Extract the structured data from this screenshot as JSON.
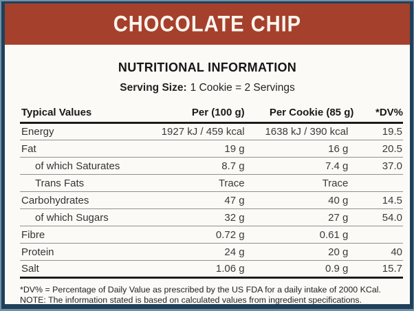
{
  "banner": {
    "title": "CHOCOLATE CHIP"
  },
  "info": {
    "title": "NUTRITIONAL INFORMATION",
    "serving_label": "Serving Size:",
    "serving_value": "1 Cookie = 2 Servings"
  },
  "table": {
    "headers": [
      "Typical Values",
      "Per (100 g)",
      "Per Cookie (85 g)",
      "*DV%"
    ],
    "rows": [
      {
        "label": "Energy",
        "per100": "1927 kJ / 459 kcal",
        "perCookie": "1638 kJ / 390 kcal",
        "dv": "19.5"
      },
      {
        "label": "Fat",
        "per100": "19 g",
        "perCookie": "16 g",
        "dv": "20.5"
      },
      {
        "label": "of which Saturates",
        "per100": "8.7 g",
        "perCookie": "7.4 g",
        "dv": "37.0"
      },
      {
        "label": "Trans Fats",
        "per100": "Trace",
        "perCookie": "Trace",
        "dv": ""
      },
      {
        "label": "Carbohydrates",
        "per100": "47 g",
        "perCookie": "40 g",
        "dv": "14.5"
      },
      {
        "label": "of which Sugars",
        "per100": "32 g",
        "perCookie": "27 g",
        "dv": "54.0"
      },
      {
        "label": "Fibre",
        "per100": "0.72 g",
        "perCookie": "0.61 g",
        "dv": ""
      },
      {
        "label": "Protein",
        "per100": "24 g",
        "perCookie": "20 g",
        "dv": "40"
      },
      {
        "label": "Salt",
        "per100": "1.06 g",
        "perCookie": "0.9 g",
        "dv": "15.7"
      }
    ]
  },
  "footnotes": [
    "*DV% = Percentage of Daily Value as prescribed by the US FDA for a daily intake of 2000 KCal.",
    "NOTE: The information stated is based on calculated values from ingredient specifications."
  ],
  "colors": {
    "banner_bg": "#A5402D",
    "banner_text": "#FCF5EE",
    "border_navy": "#20405A",
    "border_light": "#6F92A9",
    "rule_dark": "#1B1B1B",
    "rule_light": "#8F8F8F",
    "background": "#FBFAF7"
  }
}
